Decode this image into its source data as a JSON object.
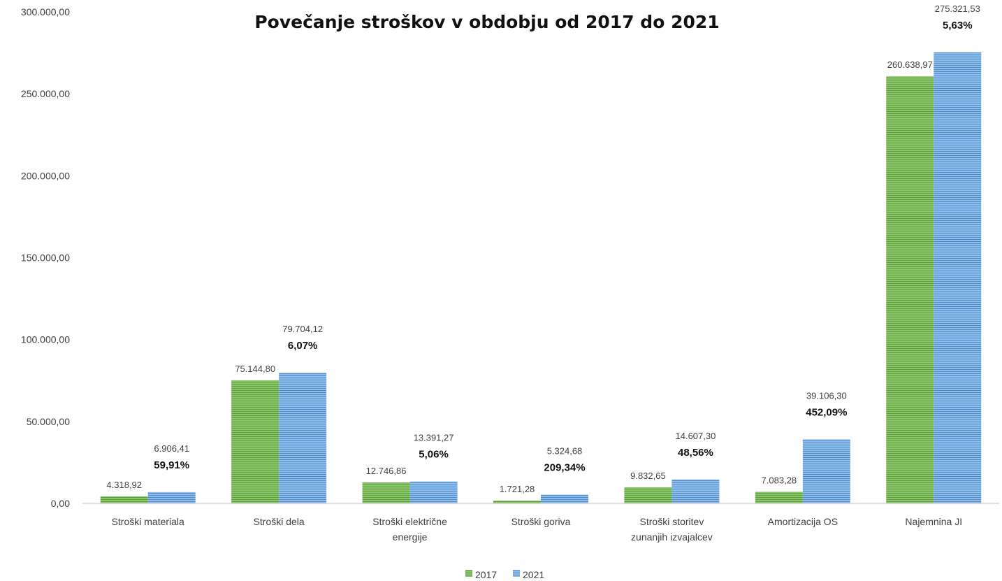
{
  "chart_data": {
    "type": "bar",
    "title": "Povečanje stroškov v obdobju od 2017 do 2021",
    "xlabel": "",
    "ylabel": "",
    "ylim": [
      0,
      300000
    ],
    "yticks": [
      "0,00",
      "50.000,00",
      "100.000,00",
      "150.000,00",
      "200.000,00",
      "250.000,00",
      "300.000,00"
    ],
    "categories": [
      [
        "Stroški materiala"
      ],
      [
        "Stroški dela"
      ],
      [
        "Stroški električne",
        "energije"
      ],
      [
        "Stroški goriva"
      ],
      [
        "Stroški storitev",
        "zunanjih izvajalcev"
      ],
      [
        "Amortizacija OS"
      ],
      [
        "Najemnina JI"
      ]
    ],
    "series": [
      {
        "name": "2017",
        "color": "#70AD47",
        "values": [
          4318.92,
          75144.8,
          12746.86,
          1721.28,
          9832.65,
          7083.28,
          260638.97
        ],
        "labels": [
          "4.318,92",
          "75.144,80",
          "12.746,86",
          "1.721,28",
          "9.832,65",
          "7.083,28",
          "260.638,97"
        ]
      },
      {
        "name": "2021",
        "color": "#5B9BD5",
        "values": [
          6906.41,
          79704.12,
          13391.27,
          5324.68,
          14607.3,
          39106.3,
          275321.53
        ],
        "labels": [
          "6.906,41",
          "79.704,12",
          "13.391,27",
          "5.324,68",
          "14.607,30",
          "39.106,30",
          "275.321,53"
        ]
      }
    ],
    "percent_labels": [
      "59,91%",
      "6,07%",
      "5,06%",
      "209,34%",
      "48,56%",
      "452,09%",
      "5,63%"
    ],
    "legend": {
      "position": "bottom",
      "items": [
        "2017",
        "2021"
      ]
    },
    "grid": false
  }
}
